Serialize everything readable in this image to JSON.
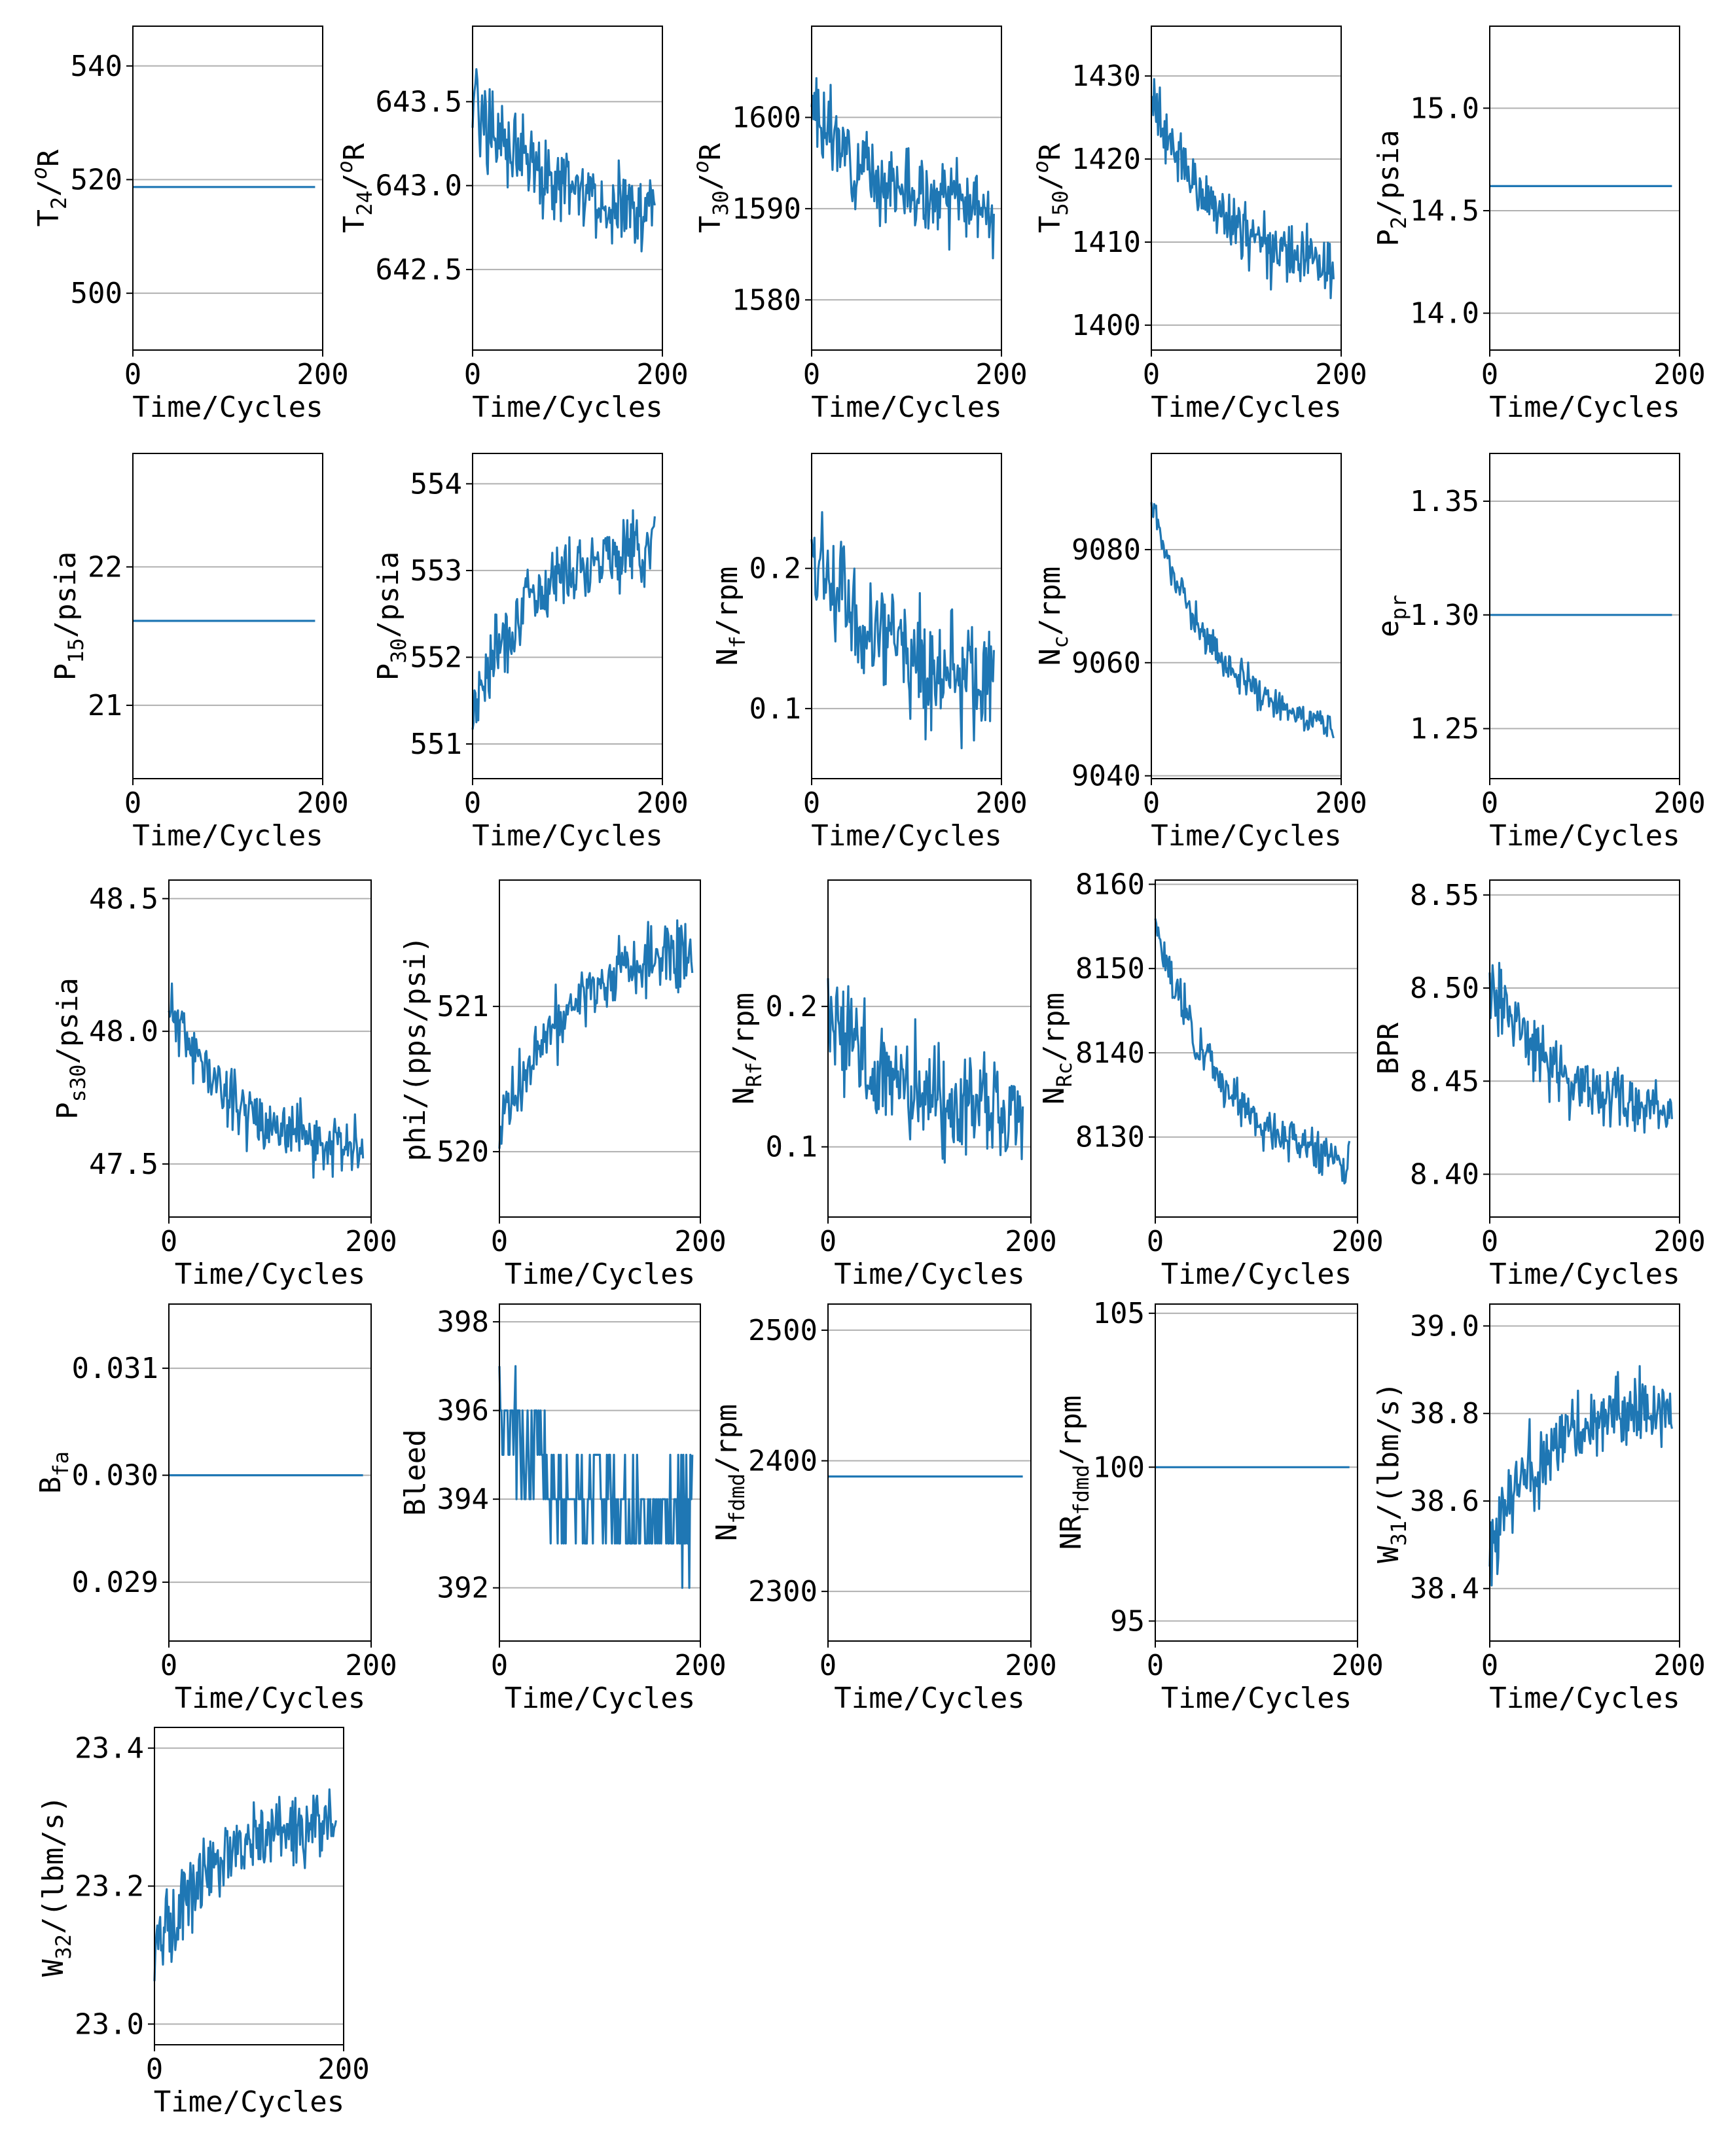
{
  "colors": {
    "line": "#1f77b4",
    "grid": "#b0b0b0",
    "axes": "#000000",
    "background": "#ffffff"
  },
  "chart_data": [
    {
      "type": "line",
      "name": "T2",
      "ylabel": "T2/oR",
      "ylabel_main": "T",
      "ylabel_sub": "2",
      "ylabel_sup": "o",
      "ylabel_rest": "/",
      "ylabel_tail": "R",
      "xlabel": "Time/Cycles",
      "xlim": [
        0,
        200
      ],
      "xticks": [
        "0",
        "200"
      ],
      "ylim": [
        490,
        547
      ],
      "yticks": [
        500,
        520,
        540
      ],
      "ytick_labels": [
        "500",
        "520",
        "540"
      ],
      "grid": "y",
      "pattern": "flat",
      "x_end": 192,
      "start": 518.7,
      "end": 518.7,
      "noise": 0,
      "seed": 1
    },
    {
      "type": "line",
      "name": "T24",
      "ylabel": "T24/oR",
      "ylabel_main": "T",
      "ylabel_sub": "24",
      "ylabel_sup": "o",
      "ylabel_rest": "/",
      "ylabel_tail": "R",
      "xlabel": "Time/Cycles",
      "xlim": [
        0,
        200
      ],
      "xticks": [
        "0",
        "200"
      ],
      "ylim": [
        642.02,
        643.95
      ],
      "yticks": [
        642.5,
        643.0,
        643.5
      ],
      "ytick_labels": [
        "642.5",
        "643.0",
        "643.5"
      ],
      "grid": "y",
      "pattern": "decay",
      "x_end": 192,
      "start": 643.55,
      "end": 642.85,
      "noise": 0.22,
      "seed": 2
    },
    {
      "type": "line",
      "name": "T30",
      "ylabel": "T30/oR",
      "ylabel_main": "T",
      "ylabel_sub": "30",
      "ylabel_sup": "o",
      "ylabel_rest": "/",
      "ylabel_tail": "R",
      "xlabel": "Time/Cycles",
      "xlim": [
        0,
        200
      ],
      "xticks": [
        "0",
        "200"
      ],
      "ylim": [
        1574.5,
        1610
      ],
      "yticks": [
        1580,
        1590,
        1600
      ],
      "ytick_labels": [
        "1580",
        "1590",
        "1600"
      ],
      "grid": "y",
      "pattern": "decay",
      "x_end": 192,
      "start": 1601,
      "end": 1590,
      "noise": 3.6,
      "seed": 3
    },
    {
      "type": "line",
      "name": "T50",
      "ylabel": "T50/oR",
      "ylabel_main": "T",
      "ylabel_sub": "50",
      "ylabel_sup": "o",
      "ylabel_rest": "/",
      "ylabel_tail": "R",
      "xlabel": "Time/Cycles",
      "xlim": [
        0,
        200
      ],
      "xticks": [
        "0",
        "200"
      ],
      "ylim": [
        1397,
        1436
      ],
      "yticks": [
        1400,
        1410,
        1420,
        1430
      ],
      "ytick_labels": [
        "1400",
        "1410",
        "1420",
        "1430"
      ],
      "grid": "y",
      "pattern": "decay",
      "x_end": 192,
      "start": 1428,
      "end": 1407,
      "noise": 3.2,
      "seed": 4
    },
    {
      "type": "line",
      "name": "P2",
      "ylabel": "P2/psia",
      "ylabel_main": "P",
      "ylabel_sub": "2",
      "ylabel_sup": "",
      "ylabel_rest": "/psia",
      "ylabel_tail": "",
      "xlabel": "Time/Cycles",
      "xlim": [
        0,
        200
      ],
      "xticks": [
        "0",
        "200"
      ],
      "ylim": [
        13.82,
        15.4
      ],
      "yticks": [
        14.0,
        14.5,
        15.0
      ],
      "ytick_labels": [
        "14.0",
        "14.5",
        "15.0"
      ],
      "grid": "y",
      "pattern": "flat",
      "x_end": 192,
      "start": 14.62,
      "end": 14.62,
      "noise": 0,
      "seed": 5
    },
    {
      "type": "line",
      "name": "P15",
      "ylabel": "P15/psia",
      "ylabel_main": "P",
      "ylabel_sub": "15",
      "ylabel_sup": "",
      "ylabel_rest": "/psia",
      "ylabel_tail": "",
      "xlabel": "Time/Cycles",
      "xlim": [
        0,
        200
      ],
      "xticks": [
        "0",
        "200"
      ],
      "ylim": [
        20.47,
        22.82
      ],
      "yticks": [
        21,
        22
      ],
      "ytick_labels": [
        "21",
        "22"
      ],
      "grid": "y",
      "pattern": "flat",
      "x_end": 192,
      "start": 21.61,
      "end": 21.61,
      "noise": 0,
      "seed": 6
    },
    {
      "type": "line",
      "name": "P30",
      "ylabel": "P30/psia",
      "ylabel_main": "P",
      "ylabel_sub": "30",
      "ylabel_sup": "",
      "ylabel_rest": "/psia",
      "ylabel_tail": "",
      "xlabel": "Time/Cycles",
      "xlim": [
        0,
        200
      ],
      "xticks": [
        "0",
        "200"
      ],
      "ylim": [
        550.6,
        554.35
      ],
      "yticks": [
        551,
        552,
        553,
        554
      ],
      "ytick_labels": [
        "551",
        "552",
        "553",
        "554"
      ],
      "grid": "y",
      "pattern": "rise",
      "x_end": 192,
      "start": 551.4,
      "end": 553.3,
      "noise": 0.35,
      "seed": 7
    },
    {
      "type": "line",
      "name": "Nf",
      "ylabel": "Nf/rpm",
      "ylabel_main": "N",
      "ylabel_sub": "f",
      "ylabel_sup": "",
      "ylabel_rest": "/rpm",
      "ylabel_tail": "",
      "xlabel": "Time/Cycles",
      "xlim": [
        0,
        200
      ],
      "xticks": [
        "0",
        "200"
      ],
      "ylim": [
        0.05,
        0.282
      ],
      "yticks": [
        0.1,
        0.2
      ],
      "ytick_labels": [
        "0.1",
        "0.2"
      ],
      "grid": "y",
      "pattern": "decay",
      "x_end": 192,
      "start": 0.21,
      "end": 0.12,
      "noise": 0.035,
      "seed": 8
    },
    {
      "type": "line",
      "name": "Nc",
      "ylabel": "Nc/rpm",
      "ylabel_main": "N",
      "ylabel_sub": "c",
      "ylabel_sup": "",
      "ylabel_rest": "/rpm",
      "ylabel_tail": "",
      "xlabel": "Time/Cycles",
      "xlim": [
        0,
        200
      ],
      "xticks": [
        "0",
        "200"
      ],
      "ylim": [
        9039.5,
        9097
      ],
      "yticks": [
        9040,
        9060,
        9080
      ],
      "ytick_labels": [
        "9040",
        "9060",
        "9080"
      ],
      "grid": "y",
      "pattern": "decay",
      "x_end": 192,
      "start": 9088,
      "end": 9049,
      "noise": 2.8,
      "seed": 9
    },
    {
      "type": "line",
      "name": "epr",
      "ylabel": "epr",
      "ylabel_main": "e",
      "ylabel_sub": "pr",
      "ylabel_sup": "",
      "ylabel_rest": "",
      "ylabel_tail": "",
      "xlabel": "Time/Cycles",
      "xlim": [
        0,
        200
      ],
      "xticks": [
        "0",
        "200"
      ],
      "ylim": [
        1.228,
        1.371
      ],
      "yticks": [
        1.25,
        1.3,
        1.35
      ],
      "ytick_labels": [
        "1.25",
        "1.30",
        "1.35"
      ],
      "grid": "y",
      "pattern": "flat",
      "x_end": 192,
      "start": 1.3,
      "end": 1.3,
      "noise": 0,
      "seed": 10
    },
    {
      "type": "line",
      "name": "Ps30",
      "ylabel": "Ps30/psia",
      "ylabel_main": "P",
      "ylabel_sub": "s30",
      "ylabel_sup": "",
      "ylabel_rest": "/psia",
      "ylabel_tail": "",
      "xlabel": "Time/Cycles",
      "xlim": [
        0,
        200
      ],
      "xticks": [
        "0",
        "200"
      ],
      "ylim": [
        47.3,
        48.57
      ],
      "yticks": [
        47.5,
        48.0,
        48.5
      ],
      "ytick_labels": [
        "47.5",
        "48.0",
        "48.5"
      ],
      "grid": "y",
      "pattern": "decay",
      "x_end": 192,
      "start": 48.1,
      "end": 47.55,
      "noise": 0.1,
      "seed": 11
    },
    {
      "type": "line",
      "name": "phi",
      "ylabel": "phi/(pps/psi)",
      "ylabel_main": "phi/(pps/psi)",
      "ylabel_sub": "",
      "ylabel_sup": "",
      "ylabel_rest": "",
      "ylabel_tail": "",
      "xlabel": "Time/Cycles",
      "xlim": [
        0,
        200
      ],
      "xticks": [
        "0",
        "200"
      ],
      "ylim": [
        519.55,
        521.87
      ],
      "yticks": [
        520,
        521
      ],
      "ytick_labels": [
        "520",
        "521"
      ],
      "grid": "y",
      "pattern": "rise",
      "x_end": 192,
      "start": 520.1,
      "end": 521.35,
      "noise": 0.2,
      "seed": 12
    },
    {
      "type": "line",
      "name": "NRf",
      "ylabel": "NRf/rpm",
      "ylabel_main": "N",
      "ylabel_sub": "Rf",
      "ylabel_sup": "",
      "ylabel_rest": "/rpm",
      "ylabel_tail": "",
      "xlabel": "Time/Cycles",
      "xlim": [
        0,
        200
      ],
      "xticks": [
        "0",
        "200"
      ],
      "ylim": [
        0.05,
        0.29
      ],
      "yticks": [
        0.1,
        0.2
      ],
      "ytick_labels": [
        "0.1",
        "0.2"
      ],
      "grid": "y",
      "pattern": "decay",
      "x_end": 192,
      "start": 0.2,
      "end": 0.12,
      "noise": 0.035,
      "seed": 13
    },
    {
      "type": "line",
      "name": "NRc",
      "ylabel": "NRc/rpm",
      "ylabel_main": "N",
      "ylabel_sub": "Rc",
      "ylabel_sup": "",
      "ylabel_rest": "/rpm",
      "ylabel_tail": "",
      "xlabel": "Time/Cycles",
      "xlim": [
        0,
        200
      ],
      "xticks": [
        "0",
        "200"
      ],
      "ylim": [
        8120.5,
        8160.5
      ],
      "yticks": [
        8130,
        8140,
        8150,
        8160
      ],
      "ytick_labels": [
        "8130",
        "8140",
        "8150",
        "8160"
      ],
      "grid": "y",
      "pattern": "decay",
      "x_end": 192,
      "start": 8155,
      "end": 8127,
      "noise": 2.3,
      "seed": 14
    },
    {
      "type": "line",
      "name": "BPR",
      "ylabel": "BPR",
      "ylabel_main": "BPR",
      "ylabel_sub": "",
      "ylabel_sup": "",
      "ylabel_rest": "",
      "ylabel_tail": "",
      "xlabel": "Time/Cycles",
      "xlim": [
        0,
        200
      ],
      "xticks": [
        "0",
        "200"
      ],
      "ylim": [
        8.377,
        8.558
      ],
      "yticks": [
        8.4,
        8.45,
        8.5,
        8.55
      ],
      "ytick_labels": [
        "8.40",
        "8.45",
        "8.50",
        "8.55"
      ],
      "grid": "y",
      "pattern": "decay",
      "x_end": 192,
      "start": 8.505,
      "end": 8.435,
      "noise": 0.015,
      "seed": 15
    },
    {
      "type": "line",
      "name": "Bfa",
      "ylabel": "Bfa",
      "ylabel_main": "B",
      "ylabel_sub": "fa",
      "ylabel_sup": "",
      "ylabel_rest": "",
      "ylabel_tail": "",
      "xlabel": "Time/Cycles",
      "xlim": [
        0,
        200
      ],
      "xticks": [
        "0",
        "200"
      ],
      "ylim": [
        0.02845,
        0.0316
      ],
      "yticks": [
        0.029,
        0.03,
        0.031
      ],
      "ytick_labels": [
        "0.029",
        "0.030",
        "0.031"
      ],
      "grid": "y",
      "pattern": "flat",
      "x_end": 192,
      "start": 0.03,
      "end": 0.03,
      "noise": 0,
      "seed": 16
    },
    {
      "type": "line",
      "name": "Bleed",
      "ylabel": "Bleed",
      "ylabel_main": "Bleed",
      "ylabel_sub": "",
      "ylabel_sup": "",
      "ylabel_rest": "",
      "ylabel_tail": "",
      "xlabel": "Time/Cycles",
      "xlim": [
        0,
        200
      ],
      "xticks": [
        "0",
        "200"
      ],
      "ylim": [
        390.8,
        398.4
      ],
      "yticks": [
        392,
        394,
        396,
        398
      ],
      "ytick_labels": [
        "392",
        "394",
        "396",
        "398"
      ],
      "grid": "y",
      "pattern": "step",
      "x_end": 192,
      "start": 396,
      "end": 393.6,
      "noise": 1.1,
      "seed": 17
    },
    {
      "type": "line",
      "name": "Nf_dmd",
      "ylabel": "Nfdmd/rpm",
      "ylabel_main": "N",
      "ylabel_sub": "fdmd",
      "ylabel_sup": "",
      "ylabel_rest": "/rpm",
      "ylabel_tail": "",
      "xlabel": "Time/Cycles",
      "xlim": [
        0,
        200
      ],
      "xticks": [
        "0",
        "200"
      ],
      "ylim": [
        2262,
        2520
      ],
      "yticks": [
        2300,
        2400,
        2500
      ],
      "ytick_labels": [
        "2300",
        "2400",
        "2500"
      ],
      "grid": "y",
      "pattern": "flat",
      "x_end": 192,
      "start": 2388,
      "end": 2388,
      "noise": 0,
      "seed": 18
    },
    {
      "type": "line",
      "name": "NRf_dmd",
      "ylabel": "NRfdmd/rpm",
      "ylabel_main": "NR",
      "ylabel_sub": "fdmd",
      "ylabel_sup": "",
      "ylabel_rest": "/rpm",
      "ylabel_tail": "",
      "xlabel": "Time/Cycles",
      "xlim": [
        0,
        200
      ],
      "xticks": [
        "0",
        "200"
      ],
      "ylim": [
        94.35,
        105.3
      ],
      "yticks": [
        95,
        100,
        105
      ],
      "ytick_labels": [
        "95",
        "100",
        "105"
      ],
      "grid": "y",
      "pattern": "flat",
      "x_end": 192,
      "start": 100,
      "end": 100,
      "noise": 0,
      "seed": 19
    },
    {
      "type": "line",
      "name": "W31",
      "ylabel": "W31/(lbm/s)",
      "ylabel_main": "W",
      "ylabel_sub": "31",
      "ylabel_sup": "",
      "ylabel_rest": "/(lbm/s)",
      "ylabel_tail": "",
      "xlabel": "Time/Cycles",
      "xlim": [
        0,
        200
      ],
      "xticks": [
        "0",
        "200"
      ],
      "ylim": [
        38.28,
        39.05
      ],
      "yticks": [
        38.4,
        38.6,
        38.8,
        39.0
      ],
      "ytick_labels": [
        "38.4",
        "38.6",
        "38.8",
        "39.0"
      ],
      "grid": "y",
      "pattern": "rise",
      "x_end": 192,
      "start": 38.5,
      "end": 38.82,
      "noise": 0.075,
      "seed": 20
    },
    {
      "type": "line",
      "name": "W32",
      "ylabel": "W32/(lbm/s)",
      "ylabel_main": "W",
      "ylabel_sub": "32",
      "ylabel_sup": "",
      "ylabel_rest": "/(lbm/s)",
      "ylabel_tail": "",
      "xlabel": "Time/Cycles",
      "xlim": [
        0,
        200
      ],
      "xticks": [
        "0",
        "200"
      ],
      "ylim": [
        22.97,
        23.43
      ],
      "yticks": [
        23.0,
        23.2,
        23.4
      ],
      "ytick_labels": [
        "23.0",
        "23.2",
        "23.4"
      ],
      "grid": "y",
      "pattern": "rise",
      "x_end": 192,
      "start": 23.1,
      "end": 23.29,
      "noise": 0.045,
      "seed": 21
    }
  ]
}
